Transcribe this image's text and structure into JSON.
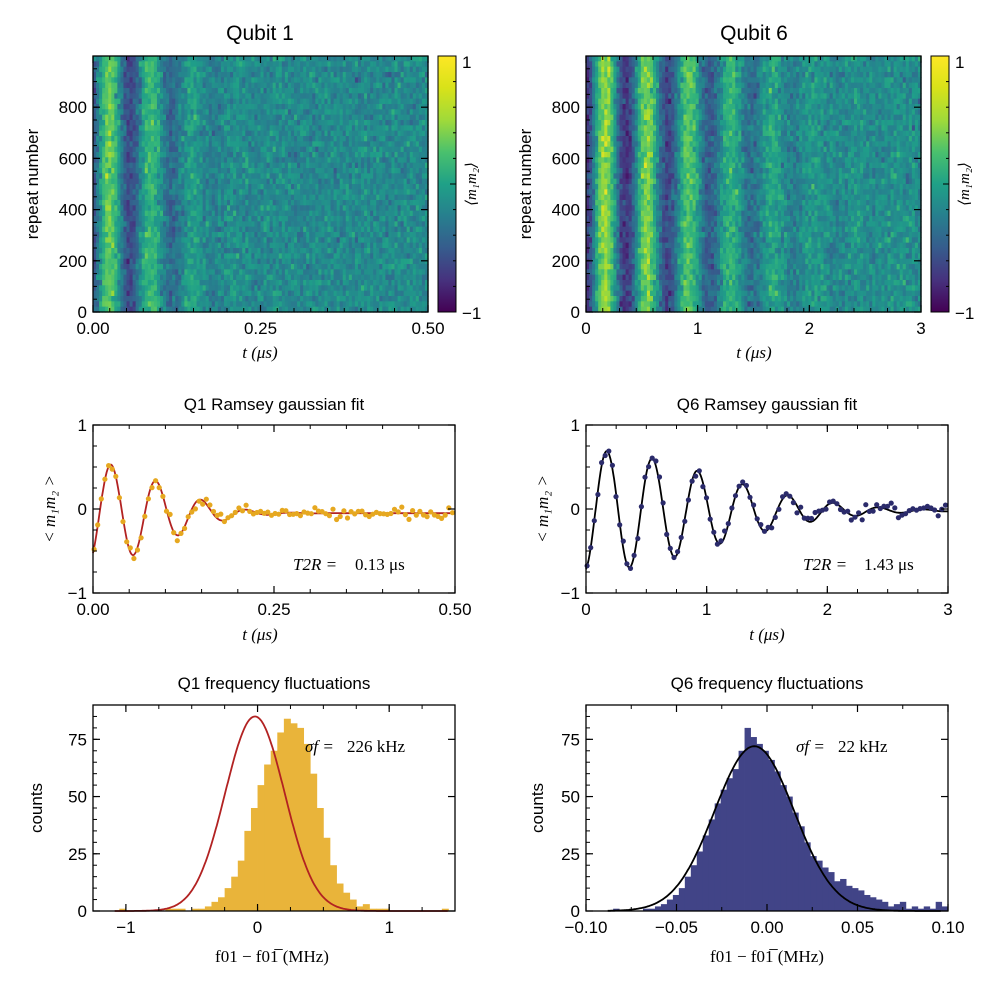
{
  "colors": {
    "q1_points": "#e6a820",
    "q1_fit": "#b22222",
    "q6_points": "#2b2b6b",
    "q6_fit": "#000000",
    "q1_hist": "#e9b43a",
    "q6_hist": "#414487"
  },
  "chart_data": [
    {
      "id": "q1_map",
      "type": "heatmap",
      "title": "Qubit 1",
      "xlabel": "t (μs)",
      "ylabel": "repeat number",
      "xlim": [
        0,
        0.5
      ],
      "ylim": [
        0,
        1000
      ],
      "xticks": [
        "0.00",
        "0.25",
        "0.50"
      ],
      "xtick_values": [
        0,
        0.25,
        0.5
      ],
      "yticks": [
        "0",
        "200",
        "400",
        "600",
        "800"
      ],
      "ytick_values": [
        0,
        200,
        400,
        600,
        800
      ],
      "colorbar": {
        "label": "⟨m₁m₂⟩",
        "min": -1,
        "max": 1,
        "min_label": "−1",
        "max_label": "1"
      },
      "model": {
        "amplitude": 0.6,
        "frequency_mhz": 16,
        "t2_us": 0.13,
        "offset": -0.05,
        "phase": 3.8
      }
    },
    {
      "id": "q6_map",
      "type": "heatmap",
      "title": "Qubit 6",
      "xlabel": "t (μs)",
      "ylabel": "",
      "xlim": [
        0,
        3
      ],
      "ylim": [
        0,
        1000
      ],
      "xticks": [
        "0",
        "1",
        "2",
        "3"
      ],
      "xtick_values": [
        0,
        1,
        2,
        3
      ],
      "yticks": [
        "0",
        "200",
        "400",
        "600",
        "800"
      ],
      "ytick_values": [
        0,
        200,
        400,
        600,
        800
      ],
      "colorbar": {
        "label": "⟨m₁m₂⟩",
        "min": -1,
        "max": 1,
        "min_label": "−1",
        "max_label": "1"
      },
      "model": {
        "amplitude": 0.72,
        "frequency_mhz": 2.66,
        "t2_us": 1.43,
        "offset": -0.02,
        "phase": 3.4
      }
    },
    {
      "id": "q1_ramsey",
      "type": "scatter",
      "title": "Q1 Ramsey gaussian fit",
      "xlabel": "t (μs)",
      "ylabel": "< m₁m₂ >",
      "xlim": [
        0,
        0.5
      ],
      "ylim": [
        -1,
        1
      ],
      "xticks": [
        "0.00",
        "0.25",
        "0.50"
      ],
      "xtick_values": [
        0,
        0.25,
        0.5
      ],
      "yticks": [
        "−1",
        "0",
        "1"
      ],
      "ytick_values": [
        -1,
        0,
        1
      ],
      "annotation_label": "T2R =",
      "annotation_value": "0.13 μs",
      "series": [
        {
          "name": "data",
          "kind": "points",
          "n": 100
        },
        {
          "name": "gaussian fit",
          "kind": "line"
        }
      ],
      "model": {
        "amplitude": 0.6,
        "frequency_mhz": 16,
        "t2_us": 0.13,
        "offset": -0.05,
        "phase": 3.8
      }
    },
    {
      "id": "q6_ramsey",
      "type": "scatter",
      "title": "Q6 Ramsey gaussian fit",
      "xlabel": "t (μs)",
      "ylabel": "< m₁m₂ >",
      "xlim": [
        0,
        3
      ],
      "ylim": [
        -1,
        1
      ],
      "xticks": [
        "0",
        "1",
        "2",
        "3"
      ],
      "xtick_values": [
        0,
        1,
        2,
        3
      ],
      "yticks": [
        "−1",
        "0",
        "1"
      ],
      "ytick_values": [
        -1,
        0,
        1
      ],
      "annotation_label": "T2R =",
      "annotation_value": "1.43 μs",
      "series": [
        {
          "name": "data",
          "kind": "points",
          "n": 100
        },
        {
          "name": "gaussian fit",
          "kind": "line"
        }
      ],
      "model": {
        "amplitude": 0.72,
        "frequency_mhz": 2.66,
        "t2_us": 1.43,
        "offset": -0.02,
        "phase": 3.4
      }
    },
    {
      "id": "q1_hist",
      "type": "bar",
      "title": "Q1 frequency fluctuations",
      "xlabel": "f01 − f01̅ (MHz)",
      "ylabel": "counts",
      "xlim": [
        -1.25,
        1.5
      ],
      "ylim": [
        0,
        90
      ],
      "xticks": [
        "−1",
        "0",
        "1"
      ],
      "xtick_values": [
        -1,
        0,
        1
      ],
      "yticks": [
        "0",
        "25",
        "50",
        "75"
      ],
      "ytick_values": [
        0,
        25,
        50,
        75
      ],
      "annotation_label": "σf =",
      "annotation_value": "226 kHz",
      "bin_start": -1.05,
      "bin_width": 0.05,
      "counts": [
        1,
        0,
        0,
        0,
        0,
        0,
        0,
        1,
        1,
        1,
        0,
        1,
        1,
        2,
        4,
        6,
        10,
        15,
        22,
        35,
        45,
        55,
        64,
        70,
        78,
        84,
        82,
        80,
        73,
        60,
        45,
        32,
        20,
        12,
        8,
        5,
        2,
        3,
        1,
        1,
        1,
        0,
        0,
        0,
        0,
        0,
        0,
        0,
        0,
        1
      ],
      "fit": {
        "mu": -0.02,
        "sigma": 0.226,
        "peak": 85
      }
    },
    {
      "id": "q6_hist",
      "type": "bar",
      "title": "Q6 frequency fluctuations",
      "xlabel": "f01 − f01̅ (MHz)",
      "ylabel": "counts",
      "xlim": [
        -0.1,
        0.1
      ],
      "ylim": [
        0,
        90
      ],
      "xticks": [
        "−0.10",
        "−0.05",
        "0.00",
        "0.05",
        "0.10"
      ],
      "xtick_values": [
        -0.1,
        -0.05,
        0,
        0.05,
        0.1
      ],
      "yticks": [
        "0",
        "25",
        "50",
        "75"
      ],
      "ytick_values": [
        0,
        25,
        50,
        75
      ],
      "annotation_label": "σf =",
      "annotation_value": "22 kHz",
      "bin_start": -0.085,
      "bin_width": 0.0033,
      "counts": [
        1,
        0,
        0,
        0,
        0,
        1,
        1,
        2,
        3,
        5,
        7,
        10,
        15,
        20,
        26,
        33,
        40,
        47,
        53,
        58,
        62,
        70,
        80,
        76,
        73,
        70,
        66,
        61,
        55,
        50,
        43,
        37,
        30,
        24,
        22,
        19,
        17,
        13,
        14,
        11,
        10,
        9,
        7,
        6,
        5,
        4,
        2,
        3,
        4,
        1,
        2,
        1,
        2,
        1,
        4,
        2
      ],
      "fit": {
        "mu": -0.007,
        "sigma": 0.022,
        "peak": 72
      }
    }
  ]
}
